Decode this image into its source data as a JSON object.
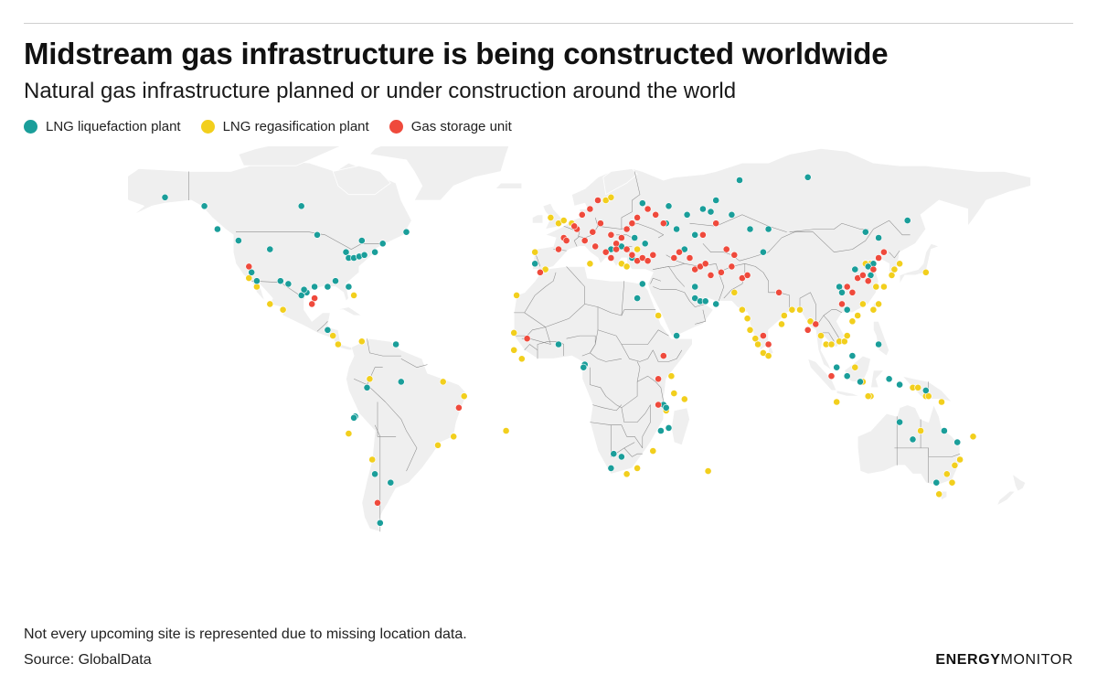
{
  "header": {
    "title": "Midstream gas infrastructure is being constructed worldwide",
    "subtitle": "Natural gas infrastructure planned or under construction around the world"
  },
  "legend": [
    {
      "key": "liquefaction",
      "label": "LNG liquefaction plant",
      "color": "#1a9e9a"
    },
    {
      "key": "regasification",
      "label": "LNG regasification plant",
      "color": "#f2cf1d"
    },
    {
      "key": "storage",
      "label": "Gas storage unit",
      "color": "#ef4a3c"
    }
  ],
  "footer": {
    "note": "Not every upcoming site is represented due to missing location data.",
    "source": "Source: GlobalData",
    "logo_bold": "ENERGY",
    "logo_light": "MONITOR"
  },
  "map": {
    "land_color": "#efefef",
    "border_color": "#8c8c8c",
    "sites": {
      "liquefaction": [
        [
          -150,
          61
        ],
        [
          -135,
          58
        ],
        [
          -98,
          58
        ],
        [
          -130,
          50
        ],
        [
          -122,
          46
        ],
        [
          -110,
          43
        ],
        [
          -92,
          48
        ],
        [
          -75,
          46
        ],
        [
          -67,
          45
        ],
        [
          -58,
          49
        ],
        [
          -81,
          42
        ],
        [
          -80,
          40
        ],
        [
          -78,
          40
        ],
        [
          -76,
          40.5
        ],
        [
          -74,
          41
        ],
        [
          -70,
          42
        ],
        [
          -85,
          32
        ],
        [
          -93,
          30
        ],
        [
          -96,
          28
        ],
        [
          -98,
          27
        ],
        [
          -97,
          29
        ],
        [
          -117,
          35
        ],
        [
          -115,
          32
        ],
        [
          -106,
          32
        ],
        [
          -103,
          31
        ],
        [
          -88,
          30
        ],
        [
          -80,
          30
        ],
        [
          -88,
          15
        ],
        [
          -62,
          10
        ],
        [
          -73,
          -5
        ],
        [
          -60,
          -3
        ],
        [
          -77.5,
          -15
        ],
        [
          -78,
          -15.5
        ],
        [
          -70,
          -35
        ],
        [
          -64,
          -38
        ],
        [
          -68,
          -52
        ],
        [
          -9,
          38
        ],
        [
          0,
          10
        ],
        [
          10,
          3
        ],
        [
          9.5,
          2
        ],
        [
          28,
          40
        ],
        [
          20,
          43
        ],
        [
          24,
          44
        ],
        [
          32,
          59
        ],
        [
          42,
          58
        ],
        [
          49,
          55
        ],
        [
          55,
          57
        ],
        [
          60,
          60
        ],
        [
          58,
          56
        ],
        [
          66,
          55
        ],
        [
          69,
          67
        ],
        [
          48,
          43
        ],
        [
          52,
          48
        ],
        [
          41,
          52
        ],
        [
          45,
          50
        ],
        [
          29,
          47
        ],
        [
          33,
          45
        ],
        [
          30,
          26
        ],
        [
          32,
          31
        ],
        [
          45,
          13
        ],
        [
          52,
          26
        ],
        [
          52,
          30
        ],
        [
          54,
          25
        ],
        [
          56,
          25
        ],
        [
          60,
          24
        ],
        [
          73,
          50
        ],
        [
          78,
          42
        ],
        [
          80,
          50
        ],
        [
          95,
          68
        ],
        [
          117,
          49
        ],
        [
          122,
          47
        ],
        [
          133,
          53
        ],
        [
          113,
          36
        ],
        [
          120,
          38
        ],
        [
          118,
          37
        ],
        [
          119,
          34
        ],
        [
          107,
          30
        ],
        [
          108,
          28
        ],
        [
          110,
          22
        ],
        [
          112,
          6
        ],
        [
          122,
          10
        ],
        [
          106,
          2
        ],
        [
          115,
          -3
        ],
        [
          110,
          -1
        ],
        [
          140,
          -6
        ],
        [
          130,
          -17
        ],
        [
          152,
          -24
        ],
        [
          135,
          -23
        ],
        [
          147,
          -20
        ],
        [
          144,
          -38
        ],
        [
          126,
          -2
        ],
        [
          130,
          -4
        ],
        [
          21,
          -28
        ],
        [
          24,
          -29
        ],
        [
          20,
          -33
        ],
        [
          40,
          -11
        ],
        [
          41,
          -12
        ],
        [
          39,
          -20
        ],
        [
          42,
          -19
        ]
      ],
      "regasification": [
        [
          -118,
          33
        ],
        [
          -115,
          30
        ],
        [
          -110,
          24
        ],
        [
          -105,
          22
        ],
        [
          -78,
          27
        ],
        [
          -86,
          13
        ],
        [
          -84,
          10
        ],
        [
          -75,
          11
        ],
        [
          -72,
          -2
        ],
        [
          -44,
          -3
        ],
        [
          -36,
          -8
        ],
        [
          -40,
          -22
        ],
        [
          -46,
          -25
        ],
        [
          -80,
          -21
        ],
        [
          -71,
          -30
        ],
        [
          -5,
          36
        ],
        [
          -9,
          42
        ],
        [
          -16,
          27
        ],
        [
          -17,
          14
        ],
        [
          -17,
          8
        ],
        [
          -14,
          5
        ],
        [
          -20,
          -20
        ],
        [
          -3,
          54
        ],
        [
          0,
          52
        ],
        [
          2,
          53
        ],
        [
          5,
          52
        ],
        [
          18,
          60
        ],
        [
          20,
          61
        ],
        [
          12,
          38
        ],
        [
          24,
          38
        ],
        [
          26,
          37
        ],
        [
          30,
          43
        ],
        [
          38,
          20
        ],
        [
          43,
          -1
        ],
        [
          44,
          -7
        ],
        [
          41,
          -13
        ],
        [
          36,
          -27
        ],
        [
          30,
          -33
        ],
        [
          26,
          -35
        ],
        [
          67,
          28
        ],
        [
          70,
          22
        ],
        [
          72,
          19
        ],
        [
          73,
          15
        ],
        [
          75,
          12
        ],
        [
          76,
          10
        ],
        [
          78,
          7
        ],
        [
          80,
          6
        ],
        [
          85,
          17
        ],
        [
          86,
          20
        ],
        [
          89,
          22
        ],
        [
          92,
          22
        ],
        [
          96,
          18
        ],
        [
          100,
          13
        ],
        [
          102,
          10
        ],
        [
          104,
          10
        ],
        [
          107,
          11
        ],
        [
          109,
          11
        ],
        [
          110,
          13
        ],
        [
          112,
          18
        ],
        [
          114,
          20
        ],
        [
          116,
          24
        ],
        [
          120,
          22
        ],
        [
          122,
          24
        ],
        [
          124,
          30
        ],
        [
          127,
          34
        ],
        [
          128,
          36
        ],
        [
          130,
          38
        ],
        [
          140,
          35
        ],
        [
          119,
          38
        ],
        [
          121,
          30
        ],
        [
          117,
          38
        ],
        [
          113,
          2
        ],
        [
          116,
          -3
        ],
        [
          119,
          -8
        ],
        [
          118,
          -8
        ],
        [
          106,
          -10
        ],
        [
          135,
          -5
        ],
        [
          137,
          -5
        ],
        [
          140,
          -8
        ],
        [
          141,
          -8
        ],
        [
          146,
          -10
        ],
        [
          148,
          -35
        ],
        [
          151,
          -32
        ],
        [
          150,
          -38
        ],
        [
          153,
          -30
        ],
        [
          138,
          -20
        ],
        [
          158,
          -22
        ],
        [
          145,
          -42
        ],
        [
          57,
          -34
        ],
        [
          48,
          -9
        ]
      ],
      "storage": [
        [
          -118,
          37
        ],
        [
          -93,
          26
        ],
        [
          -94,
          24
        ],
        [
          -69,
          -45
        ],
        [
          -38,
          -12
        ],
        [
          -12,
          12
        ],
        [
          -7,
          35
        ],
        [
          0,
          43
        ],
        [
          2,
          47
        ],
        [
          7,
          50
        ],
        [
          10,
          46
        ],
        [
          14,
          44
        ],
        [
          13,
          49
        ],
        [
          16,
          52
        ],
        [
          20,
          48
        ],
        [
          22,
          45
        ],
        [
          24,
          47
        ],
        [
          26,
          50
        ],
        [
          28,
          52
        ],
        [
          30,
          54
        ],
        [
          34,
          57
        ],
        [
          37,
          55
        ],
        [
          40,
          52
        ],
        [
          15,
          60
        ],
        [
          12,
          57
        ],
        [
          9,
          55
        ],
        [
          6,
          51
        ],
        [
          18,
          42
        ],
        [
          20,
          40
        ],
        [
          22,
          43
        ],
        [
          26,
          43
        ],
        [
          28,
          41
        ],
        [
          30,
          39
        ],
        [
          32,
          40
        ],
        [
          34,
          39
        ],
        [
          36,
          41
        ],
        [
          44,
          40
        ],
        [
          46,
          42
        ],
        [
          50,
          40
        ],
        [
          52,
          36
        ],
        [
          54,
          37
        ],
        [
          56,
          38
        ],
        [
          58,
          34
        ],
        [
          62,
          35
        ],
        [
          66,
          37
        ],
        [
          70,
          33
        ],
        [
          72,
          34
        ],
        [
          55,
          48
        ],
        [
          60,
          52
        ],
        [
          108,
          24
        ],
        [
          110,
          30
        ],
        [
          112,
          28
        ],
        [
          114,
          33
        ],
        [
          116,
          34
        ],
        [
          118,
          32
        ],
        [
          120,
          36
        ],
        [
          122,
          40
        ],
        [
          124,
          42
        ],
        [
          98,
          17
        ],
        [
          95,
          15
        ],
        [
          104,
          -1
        ],
        [
          80,
          10
        ],
        [
          78,
          13
        ],
        [
          84,
          28
        ],
        [
          64,
          43
        ],
        [
          67,
          41
        ],
        [
          3,
          46
        ],
        [
          38,
          -2
        ],
        [
          40,
          6
        ],
        [
          38,
          -11
        ]
      ]
    }
  }
}
